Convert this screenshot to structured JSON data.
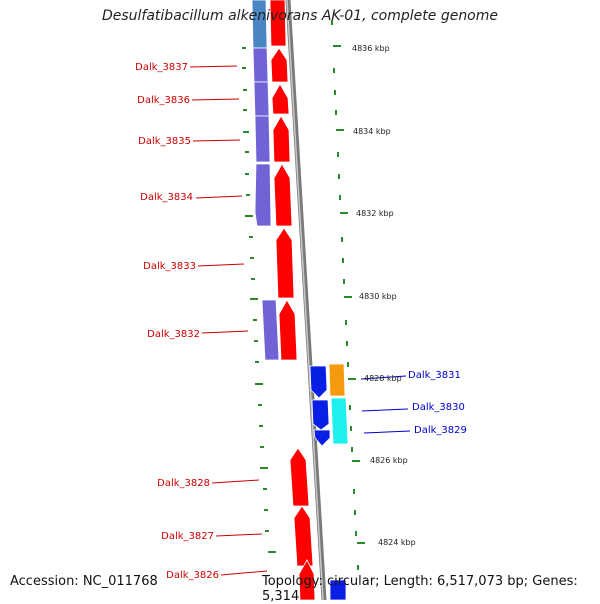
{
  "title": "Desulfatibacillum alkenivorans AK-01, complete genome",
  "footer": {
    "accession": "Accession: NC_011768",
    "summary": "Topology: circular; Length: 6,517,073 bp; Genes: 5,314"
  },
  "colors": {
    "background": "#ffffff",
    "forward_cds": "#ff0000",
    "reverse_cds_light": "#6f63d6",
    "reverse_cds_dark": "#0a1fe6",
    "orange_cds": "#f59a0f",
    "cyan_cds": "#1ef0f0",
    "steel_cds": "#4a86c4",
    "backbone": "#888888",
    "tick": "#2a8a2a",
    "label_red": "#cc0000",
    "label_blue": "#0000cc"
  },
  "scale_labels": [
    "4836 kbp",
    "4834 kbp",
    "4832 kbp",
    "4830 kbp",
    "4828 kbp",
    "4826 kbp",
    "4824 kbp"
  ],
  "left_labels": [
    "Dalk_3837",
    "Dalk_3836",
    "Dalk_3835",
    "Dalk_3834",
    "Dalk_3833",
    "Dalk_3832",
    "Dalk_3828",
    "Dalk_3827",
    "Dalk_3826"
  ],
  "right_labels": [
    "Dalk_3831",
    "Dalk_3830",
    "Dalk_3829"
  ]
}
